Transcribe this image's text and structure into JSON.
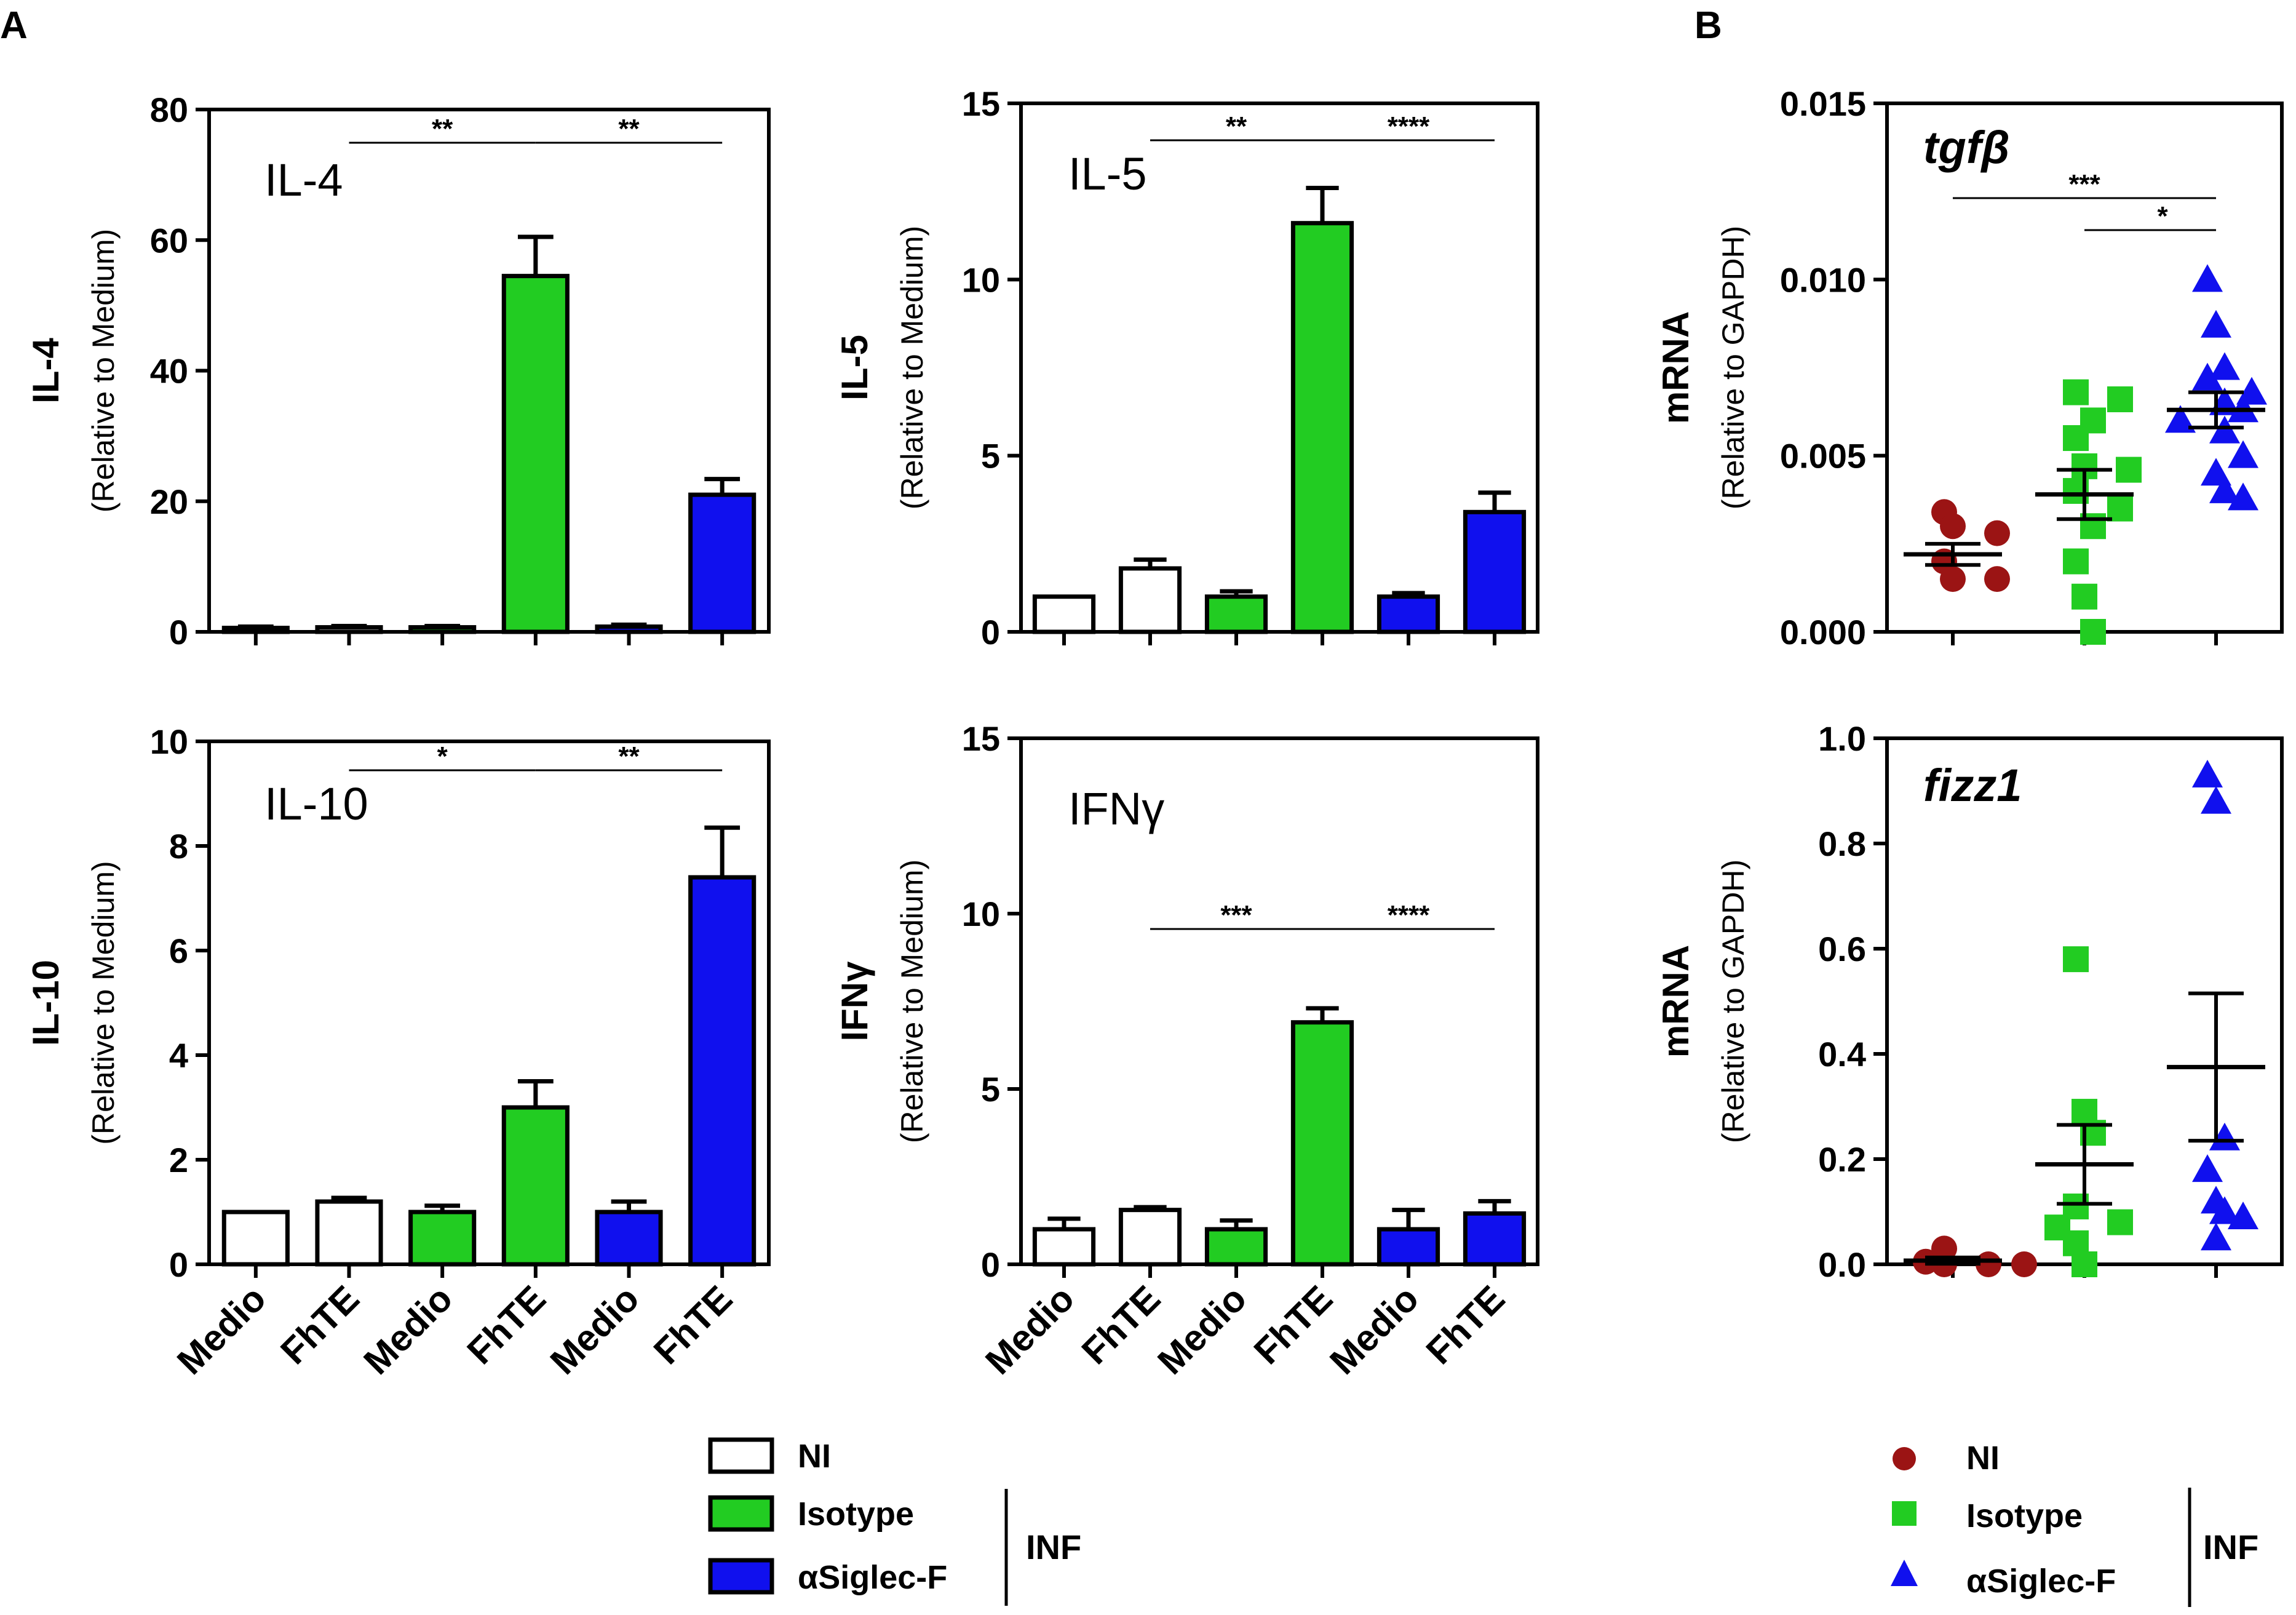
{
  "panel_labels": {
    "a": "A",
    "b": "B"
  },
  "colors": {
    "ni": "#ffffff",
    "isotype": "#22cc22",
    "siglec": "#1010ee",
    "ni_dot": "#9b1414",
    "iso_dot": "#22cc22",
    "sig_dot": "#1010ee",
    "axis": "#000000"
  },
  "x_categories": [
    "Medio",
    "FhTE",
    "Medio",
    "FhTE",
    "Medio",
    "FhTE"
  ],
  "chart_data": [
    {
      "id": "il4",
      "type": "bar",
      "title": "IL-4",
      "ylabel": "IL-4",
      "ylabel2": "(Relative to Medium)",
      "ylim": [
        0,
        80
      ],
      "yticks": [
        0,
        20,
        40,
        60,
        80
      ],
      "categories": [
        "Medio",
        "FhTE",
        "Medio",
        "FhTE",
        "Medio",
        "FhTE"
      ],
      "groups": [
        "NI",
        "NI",
        "Isotype",
        "Isotype",
        "αSiglec-F",
        "αSiglec-F"
      ],
      "values": [
        0.6,
        0.7,
        0.7,
        54.5,
        0.8,
        21
      ],
      "errors": [
        0.2,
        0.2,
        0.2,
        6,
        0.3,
        2.4
      ],
      "significance": [
        {
          "from": 1,
          "to": 3,
          "label": "**"
        },
        {
          "from": 3,
          "to": 5,
          "label": "**"
        }
      ]
    },
    {
      "id": "il5",
      "type": "bar",
      "title": "IL-5",
      "ylabel": "IL-5",
      "ylabel2": "(Relative to Medium)",
      "ylim": [
        0,
        15
      ],
      "yticks": [
        0,
        5,
        10,
        15
      ],
      "categories": [
        "Medio",
        "FhTE",
        "Medio",
        "FhTE",
        "Medio",
        "FhTE"
      ],
      "groups": [
        "NI",
        "NI",
        "Isotype",
        "Isotype",
        "αSiglec-F",
        "αSiglec-F"
      ],
      "values": [
        1.0,
        1.8,
        1.0,
        11.6,
        1.0,
        3.4
      ],
      "errors": [
        0,
        0.25,
        0.15,
        1.0,
        0.1,
        0.55
      ],
      "significance": [
        {
          "from": 1,
          "to": 3,
          "label": "**"
        },
        {
          "from": 3,
          "to": 5,
          "label": "****"
        }
      ]
    },
    {
      "id": "il10",
      "type": "bar",
      "title": "IL-10",
      "ylabel": "IL-10",
      "ylabel2": "(Relative to Medium)",
      "ylim": [
        0,
        10
      ],
      "yticks": [
        0,
        2,
        4,
        6,
        8,
        10
      ],
      "categories": [
        "Medio",
        "FhTE",
        "Medio",
        "FhTE",
        "Medio",
        "FhTE"
      ],
      "groups": [
        "NI",
        "NI",
        "Isotype",
        "Isotype",
        "αSiglec-F",
        "αSiglec-F"
      ],
      "values": [
        1.0,
        1.2,
        1.0,
        3.0,
        1.0,
        7.4
      ],
      "errors": [
        0,
        0.07,
        0.12,
        0.5,
        0.2,
        0.95
      ],
      "significance": [
        {
          "from": 1,
          "to": 3,
          "label": "*"
        },
        {
          "from": 3,
          "to": 5,
          "label": "**"
        }
      ]
    },
    {
      "id": "ifng",
      "type": "bar",
      "title": "IFNγ",
      "ylabel": "IFNγ",
      "ylabel2": "(Relative to Medium)",
      "ylim": [
        0,
        15
      ],
      "yticks": [
        0,
        5,
        10,
        15
      ],
      "categories": [
        "Medio",
        "FhTE",
        "Medio",
        "FhTE",
        "Medio",
        "FhTE"
      ],
      "groups": [
        "NI",
        "NI",
        "Isotype",
        "Isotype",
        "αSiglec-F",
        "αSiglec-F"
      ],
      "values": [
        1.0,
        1.55,
        1.0,
        6.9,
        1.0,
        1.45
      ],
      "errors": [
        0.3,
        0.08,
        0.25,
        0.4,
        0.55,
        0.35
      ],
      "significance": [
        {
          "from": 1,
          "to": 3,
          "label": "***"
        },
        {
          "from": 3,
          "to": 5,
          "label": "****"
        }
      ]
    },
    {
      "id": "tgfb",
      "type": "scatter",
      "title": "tgfβ",
      "ylabel": "mRNA",
      "ylabel2": "(Relative to GAPDH)",
      "ylim": [
        0,
        0.015
      ],
      "yticks": [
        "0.000",
        "0.005",
        "0.010",
        "0.015"
      ],
      "ytick_values": [
        0,
        0.005,
        0.01,
        0.015
      ],
      "groups": [
        "NI",
        "Isotype",
        "αSiglec-F"
      ],
      "points": [
        [
          0.0034,
          0.003,
          0.0028,
          0.002,
          0.0015,
          0.0015
        ],
        [
          0.0068,
          0.0066,
          0.006,
          0.0055,
          0.0047,
          0.0046,
          0.004,
          0.0035,
          0.003,
          0.002,
          0.001,
          0.0
        ],
        [
          0.01,
          0.0087,
          0.0075,
          0.0072,
          0.0068,
          0.0065,
          0.0063,
          0.006,
          0.0057,
          0.005,
          0.0045,
          0.004,
          0.0038
        ]
      ],
      "mean": [
        0.0022,
        0.0039,
        0.0063
      ],
      "sem": [
        0.0003,
        0.0007,
        0.0005
      ],
      "significance": [
        {
          "from": 0,
          "to": 2,
          "label": "***"
        },
        {
          "from": 1,
          "to": 2,
          "label": "*"
        }
      ]
    },
    {
      "id": "fizz1",
      "type": "scatter",
      "title": "fizz1",
      "ylabel": "mRNA",
      "ylabel2": "(Relative to GAPDH)",
      "ylim": [
        0,
        1.0
      ],
      "yticks": [
        "0.0",
        "0.2",
        "0.4",
        "0.6",
        "0.8",
        "1.0"
      ],
      "ytick_values": [
        0,
        0.2,
        0.4,
        0.6,
        0.8,
        1.0
      ],
      "groups": [
        "NI",
        "Isotype",
        "αSiglec-F"
      ],
      "points": [
        [
          0.0,
          0.0,
          0.005,
          0.03,
          0.0
        ],
        [
          0.58,
          0.29,
          0.25,
          0.11,
          0.08,
          0.07,
          0.04,
          0.0
        ],
        [
          0.93,
          0.88,
          0.24,
          0.18,
          0.12,
          0.1,
          0.09,
          0.05
        ]
      ],
      "mean": [
        0.007,
        0.19,
        0.375
      ],
      "sem": [
        0.006,
        0.075,
        0.14
      ],
      "significance": []
    }
  ],
  "legend_a": {
    "items": [
      "NI",
      "Isotype",
      "αSiglec-F"
    ],
    "bracket_label": "INF"
  },
  "legend_b": {
    "items": [
      "NI",
      "Isotype",
      "αSiglec-F"
    ],
    "bracket_label": "INF"
  }
}
